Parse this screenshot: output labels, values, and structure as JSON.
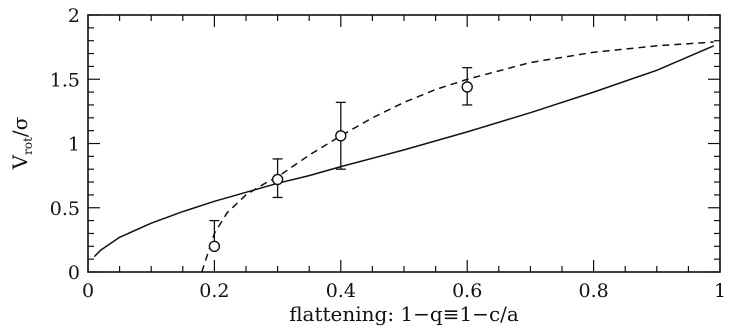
{
  "chart_data": {
    "type": "scatter",
    "xlabel": "flattening: 1−q≡1−c/a",
    "ylabel": {
      "main": "V",
      "sub": "rot",
      "tail": "/σ"
    },
    "xlim": [
      0,
      1
    ],
    "ylim": [
      0,
      2
    ],
    "x_ticks": [
      "0",
      "0.2",
      "0.4",
      "0.6",
      "0.8",
      "1"
    ],
    "y_ticks": [
      "0",
      "0.5",
      "1",
      "1.5",
      "2"
    ],
    "grid": false,
    "series": [
      {
        "style": "points-with-errorbars",
        "x": [
          0.2,
          0.3,
          0.4,
          0.6
        ],
        "y": [
          0.2,
          0.72,
          1.06,
          1.44
        ],
        "yerr_low": [
          0.2,
          0.58,
          0.8,
          1.3
        ],
        "yerr_high": [
          0.4,
          0.88,
          1.32,
          1.59
        ]
      },
      {
        "style": "solid-line",
        "x": [
          0.01,
          0.02,
          0.05,
          0.1,
          0.15,
          0.2,
          0.25,
          0.3,
          0.35,
          0.4,
          0.5,
          0.6,
          0.7,
          0.8,
          0.9,
          0.99
        ],
        "y": [
          0.12,
          0.17,
          0.27,
          0.38,
          0.47,
          0.55,
          0.62,
          0.69,
          0.75,
          0.82,
          0.95,
          1.09,
          1.24,
          1.4,
          1.57,
          1.76
        ]
      },
      {
        "style": "dashed-line",
        "x": [
          0.18,
          0.2,
          0.22,
          0.25,
          0.28,
          0.3,
          0.35,
          0.4,
          0.45,
          0.5,
          0.55,
          0.6,
          0.7,
          0.8,
          0.9,
          0.99
        ],
        "y": [
          0.0,
          0.3,
          0.46,
          0.6,
          0.69,
          0.74,
          0.91,
          1.06,
          1.2,
          1.32,
          1.42,
          1.5,
          1.63,
          1.71,
          1.76,
          1.79
        ]
      }
    ]
  }
}
